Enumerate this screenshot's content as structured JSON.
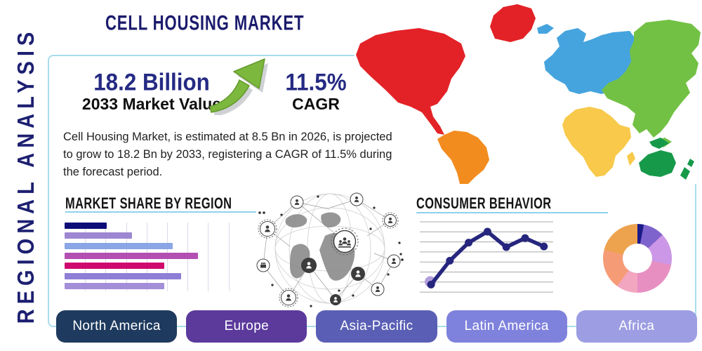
{
  "page": {
    "title": "CELL HOUSING MARKET",
    "side_label": "REGIONAL ANALYSIS"
  },
  "stats": {
    "market_value": {
      "value": "18.2 Billion",
      "label": "2033 Market Value"
    },
    "cagr": {
      "value": "11.5%",
      "label": "CAGR"
    }
  },
  "description": {
    "text": "Cell Housing Market, is estimated at 8.5 Bn in 2026, is projected\nto grow to 18.2 Bn by 2033, registering a CAGR of 11.5% during\nthe forecast period."
  },
  "sections": {
    "market_share_heading": "MARKET SHARE BY REGION",
    "consumer_behavior_heading": "CONSUMER BEHAVIOR"
  },
  "region_buttons": [
    {
      "label": "North America",
      "color": "#1e3a5e"
    },
    {
      "label": "Europe",
      "color": "#5b3a9c"
    },
    {
      "label": "Asia-Pacific",
      "color": "#5a5fb5"
    },
    {
      "label": "Latin America",
      "color": "#7f82dc"
    },
    {
      "label": "Africa",
      "color": "#9c9de2"
    }
  ],
  "map": {
    "regions": [
      {
        "name": "north-america",
        "color": "#e32227"
      },
      {
        "name": "greenland",
        "color": "#e32227"
      },
      {
        "name": "south-america",
        "color": "#f28c1e"
      },
      {
        "name": "europe",
        "color": "#45a4de"
      },
      {
        "name": "africa",
        "color": "#f8c94a"
      },
      {
        "name": "asia",
        "color": "#72c144"
      },
      {
        "name": "oceania",
        "color": "#17994a"
      }
    ]
  },
  "chart_data": [
    {
      "type": "bar",
      "title": "MARKET SHARE BY REGION",
      "orientation": "horizontal",
      "note": "bars are unlabeled in the image; values are relative share of axis width (0-100)",
      "values": [
        25,
        40,
        64,
        79,
        59,
        69,
        59
      ],
      "colors": [
        "#0d0d78",
        "#9d86d2",
        "#8aa6e6",
        "#b34fb2",
        "#cf0a6e",
        "#8f7ed6",
        "#a28fd8"
      ],
      "grid": "vertical, 8 lines",
      "xlim": [
        0,
        100
      ]
    },
    {
      "type": "line",
      "title": "CONSUMER BEHAVIOR",
      "note": "no axis labels shown; 7 evenly spaced points, values relative 0-100",
      "x": [
        1,
        2,
        3,
        4,
        5,
        6,
        7
      ],
      "values": [
        5,
        42,
        70,
        87,
        63,
        77,
        64
      ],
      "color": "#26267e",
      "first_point_halo_color": "#b49ddb",
      "grid": "horizontal, 8 gray lines",
      "ylim": [
        0,
        100
      ]
    },
    {
      "type": "pie",
      "subtype": "donut",
      "note": "unlabeled donut; values are percent of circle starting at 12 o'clock, clockwise",
      "segments": [
        {
          "color": "#1b1b8a",
          "value": 3
        },
        {
          "color": "#7f63cc",
          "value": 10
        },
        {
          "color": "#cb97e6",
          "value": 15
        },
        {
          "color": "#e78fc1",
          "value": 22
        },
        {
          "color": "#f2a6c0",
          "value": 10
        },
        {
          "color": "#f59c77",
          "value": 19
        },
        {
          "color": "#eda24e",
          "value": 21
        }
      ]
    }
  ]
}
